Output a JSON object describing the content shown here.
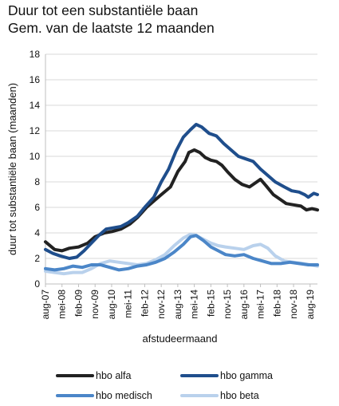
{
  "title_lines": [
    "Duur tot een substantiële baan",
    "Gem. van de laatste 12 maanden"
  ],
  "chart_data": {
    "type": "line",
    "title": "Duur tot een substantiële baan — Gem. van de laatste 12 maanden",
    "xlabel": "afstudeermaand",
    "ylabel": "duur tot substantiële baan (maanden)",
    "ylim": [
      0,
      18
    ],
    "yticks": [
      0,
      2,
      4,
      6,
      8,
      10,
      12,
      14,
      16,
      18
    ],
    "grid": "horizontal",
    "legend_position": "bottom",
    "xtick_labels": [
      "aug-07",
      "mei-08",
      "feb-09",
      "nov-09",
      "aug-10",
      "mei-11",
      "feb-12",
      "nov-12",
      "aug-13",
      "mei-14",
      "feb-15",
      "nov-15",
      "aug-16",
      "mei-17",
      "feb-18",
      "nov-18",
      "aug-19"
    ],
    "x_start": "2007-08",
    "x_end": "2019-12",
    "series": [
      {
        "name": "hbo alfa",
        "color": "#222222",
        "points": [
          [
            "2007-08",
            3.3
          ],
          [
            "2008-01",
            2.7
          ],
          [
            "2008-05",
            2.6
          ],
          [
            "2008-09",
            2.8
          ],
          [
            "2009-02",
            2.9
          ],
          [
            "2009-07",
            3.2
          ],
          [
            "2009-11",
            3.7
          ],
          [
            "2010-04",
            4.0
          ],
          [
            "2010-08",
            4.1
          ],
          [
            "2011-01",
            4.3
          ],
          [
            "2011-06",
            4.7
          ],
          [
            "2011-10",
            5.2
          ],
          [
            "2012-03",
            6.0
          ],
          [
            "2012-07",
            6.5
          ],
          [
            "2012-11",
            7.0
          ],
          [
            "2013-04",
            7.6
          ],
          [
            "2013-08",
            8.8
          ],
          [
            "2013-12",
            9.6
          ],
          [
            "2014-02",
            10.3
          ],
          [
            "2014-05",
            10.5
          ],
          [
            "2014-08",
            10.3
          ],
          [
            "2014-11",
            9.9
          ],
          [
            "2015-02",
            9.7
          ],
          [
            "2015-05",
            9.6
          ],
          [
            "2015-08",
            9.3
          ],
          [
            "2015-11",
            8.8
          ],
          [
            "2016-03",
            8.2
          ],
          [
            "2016-07",
            7.8
          ],
          [
            "2016-11",
            7.6
          ],
          [
            "2017-02",
            7.9
          ],
          [
            "2017-05",
            8.2
          ],
          [
            "2017-08",
            7.7
          ],
          [
            "2017-12",
            7.0
          ],
          [
            "2018-04",
            6.6
          ],
          [
            "2018-07",
            6.3
          ],
          [
            "2018-11",
            6.2
          ],
          [
            "2019-03",
            6.1
          ],
          [
            "2019-06",
            5.8
          ],
          [
            "2019-09",
            5.9
          ],
          [
            "2019-12",
            5.8
          ]
        ]
      },
      {
        "name": "hbo gamma",
        "color": "#1f4e8c",
        "points": [
          [
            "2007-08",
            2.7
          ],
          [
            "2007-12",
            2.4
          ],
          [
            "2008-04",
            2.2
          ],
          [
            "2008-09",
            2.0
          ],
          [
            "2009-01",
            2.1
          ],
          [
            "2009-05",
            2.6
          ],
          [
            "2009-09",
            3.2
          ],
          [
            "2010-01",
            3.8
          ],
          [
            "2010-05",
            4.3
          ],
          [
            "2010-09",
            4.4
          ],
          [
            "2011-01",
            4.5
          ],
          [
            "2011-05",
            4.8
          ],
          [
            "2011-10",
            5.3
          ],
          [
            "2012-02",
            6.0
          ],
          [
            "2012-07",
            6.8
          ],
          [
            "2012-11",
            8.0
          ],
          [
            "2013-03",
            9.0
          ],
          [
            "2013-07",
            10.4
          ],
          [
            "2013-11",
            11.5
          ],
          [
            "2014-03",
            12.1
          ],
          [
            "2014-06",
            12.5
          ],
          [
            "2014-09",
            12.3
          ],
          [
            "2015-01",
            11.8
          ],
          [
            "2015-05",
            11.6
          ],
          [
            "2015-09",
            11.0
          ],
          [
            "2016-01",
            10.5
          ],
          [
            "2016-05",
            10.0
          ],
          [
            "2016-09",
            9.8
          ],
          [
            "2017-01",
            9.6
          ],
          [
            "2017-05",
            9.0
          ],
          [
            "2017-09",
            8.5
          ],
          [
            "2018-01",
            8.0
          ],
          [
            "2018-06",
            7.6
          ],
          [
            "2018-10",
            7.3
          ],
          [
            "2019-02",
            7.2
          ],
          [
            "2019-05",
            7.0
          ],
          [
            "2019-07",
            6.8
          ],
          [
            "2019-10",
            7.1
          ],
          [
            "2019-12",
            7.0
          ]
        ]
      },
      {
        "name": "hbo medisch",
        "color": "#4b86c8",
        "points": [
          [
            "2007-08",
            1.2
          ],
          [
            "2008-01",
            1.1
          ],
          [
            "2008-06",
            1.2
          ],
          [
            "2008-11",
            1.4
          ],
          [
            "2009-04",
            1.3
          ],
          [
            "2009-09",
            1.5
          ],
          [
            "2010-02",
            1.5
          ],
          [
            "2010-07",
            1.3
          ],
          [
            "2010-12",
            1.1
          ],
          [
            "2011-05",
            1.2
          ],
          [
            "2011-10",
            1.4
          ],
          [
            "2012-03",
            1.5
          ],
          [
            "2012-08",
            1.7
          ],
          [
            "2013-01",
            2.0
          ],
          [
            "2013-06",
            2.5
          ],
          [
            "2013-11",
            3.1
          ],
          [
            "2014-03",
            3.7
          ],
          [
            "2014-06",
            3.8
          ],
          [
            "2014-10",
            3.4
          ],
          [
            "2015-02",
            2.9
          ],
          [
            "2015-06",
            2.6
          ],
          [
            "2015-10",
            2.3
          ],
          [
            "2016-03",
            2.2
          ],
          [
            "2016-08",
            2.3
          ],
          [
            "2017-01",
            2.0
          ],
          [
            "2017-06",
            1.8
          ],
          [
            "2017-11",
            1.6
          ],
          [
            "2018-04",
            1.6
          ],
          [
            "2018-09",
            1.7
          ],
          [
            "2019-02",
            1.6
          ],
          [
            "2019-07",
            1.5
          ],
          [
            "2019-12",
            1.5
          ]
        ]
      },
      {
        "name": "hbo beta",
        "color": "#b9d1ec",
        "points": [
          [
            "2007-08",
            1.0
          ],
          [
            "2008-01",
            0.9
          ],
          [
            "2008-06",
            0.8
          ],
          [
            "2008-11",
            0.9
          ],
          [
            "2009-04",
            0.9
          ],
          [
            "2009-09",
            1.2
          ],
          [
            "2010-02",
            1.6
          ],
          [
            "2010-07",
            1.8
          ],
          [
            "2010-12",
            1.7
          ],
          [
            "2011-05",
            1.6
          ],
          [
            "2011-10",
            1.5
          ],
          [
            "2012-03",
            1.6
          ],
          [
            "2012-08",
            1.9
          ],
          [
            "2013-01",
            2.3
          ],
          [
            "2013-06",
            3.0
          ],
          [
            "2013-11",
            3.6
          ],
          [
            "2014-03",
            3.9
          ],
          [
            "2014-06",
            3.8
          ],
          [
            "2014-10",
            3.5
          ],
          [
            "2015-02",
            3.2
          ],
          [
            "2015-06",
            3.0
          ],
          [
            "2015-10",
            2.9
          ],
          [
            "2016-03",
            2.8
          ],
          [
            "2016-08",
            2.7
          ],
          [
            "2017-01",
            3.0
          ],
          [
            "2017-05",
            3.1
          ],
          [
            "2017-09",
            2.8
          ],
          [
            "2018-01",
            2.2
          ],
          [
            "2018-06",
            1.8
          ],
          [
            "2018-11",
            1.7
          ],
          [
            "2019-04",
            1.6
          ],
          [
            "2019-08",
            1.5
          ],
          [
            "2019-12",
            1.4
          ]
        ]
      }
    ]
  }
}
